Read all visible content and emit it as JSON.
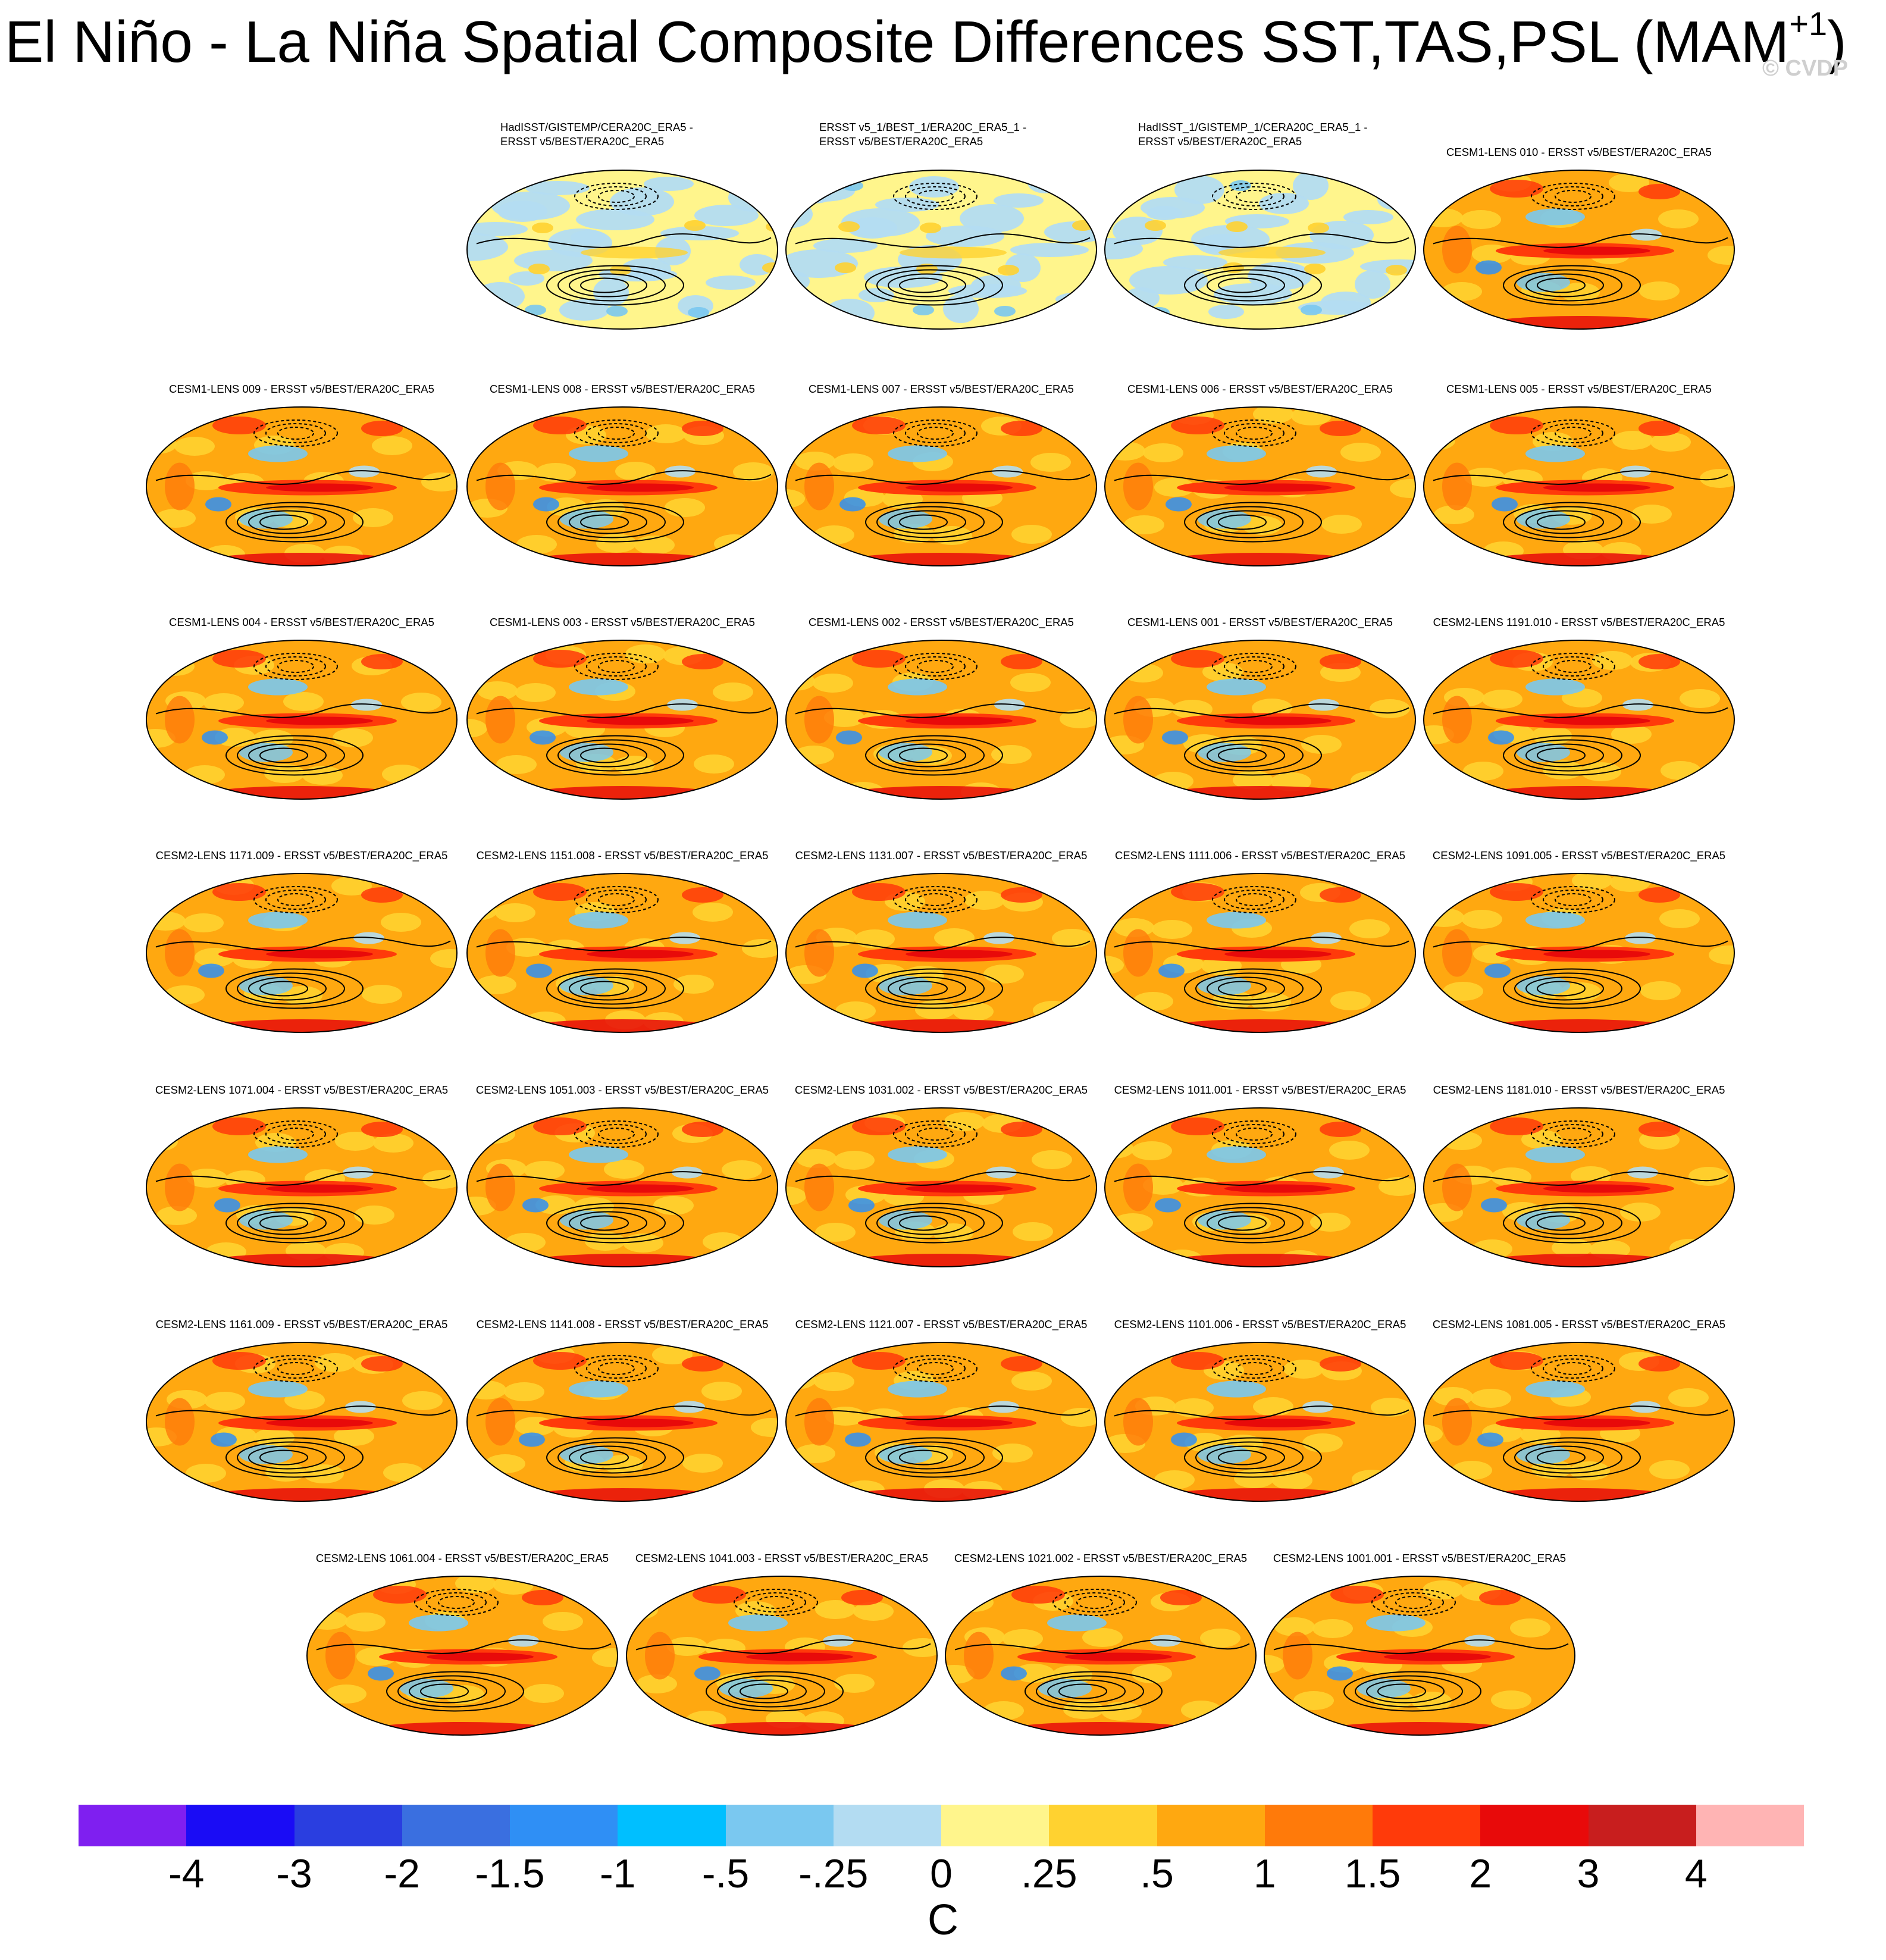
{
  "title": {
    "main": "El Niño - La Niña Spatial Composite Differences SST,TAS,PSL (MAM",
    "sup": "+1",
    "close": ")"
  },
  "watermark": "© CVDP",
  "rows": [
    [
      "",
      "HadISST/GISTEMP/CERA20C_ERA5 -\nERSST v5/BEST/ERA20C_ERA5",
      "ERSST v5_1/BEST_1/ERA20C_ERA5_1 -\nERSST v5/BEST/ERA20C_ERA5",
      "HadISST_1/GISTEMP_1/CERA20C_ERA5_1 -\nERSST v5/BEST/ERA20C_ERA5",
      "CESM1-LENS 010 - ERSST v5/BEST/ERA20C_ERA5"
    ],
    [
      "CESM1-LENS 009 - ERSST v5/BEST/ERA20C_ERA5",
      "CESM1-LENS 008 - ERSST v5/BEST/ERA20C_ERA5",
      "CESM1-LENS 007 - ERSST v5/BEST/ERA20C_ERA5",
      "CESM1-LENS 006 - ERSST v5/BEST/ERA20C_ERA5",
      "CESM1-LENS 005 - ERSST v5/BEST/ERA20C_ERA5"
    ],
    [
      "CESM1-LENS 004 - ERSST v5/BEST/ERA20C_ERA5",
      "CESM1-LENS 003 - ERSST v5/BEST/ERA20C_ERA5",
      "CESM1-LENS 002 - ERSST v5/BEST/ERA20C_ERA5",
      "CESM1-LENS 001 - ERSST v5/BEST/ERA20C_ERA5",
      "CESM2-LENS 1191.010 - ERSST v5/BEST/ERA20C_ERA5"
    ],
    [
      "CESM2-LENS 1171.009 - ERSST v5/BEST/ERA20C_ERA5",
      "CESM2-LENS 1151.008 - ERSST v5/BEST/ERA20C_ERA5",
      "CESM2-LENS 1131.007 - ERSST v5/BEST/ERA20C_ERA5",
      "CESM2-LENS 1111.006 - ERSST v5/BEST/ERA20C_ERA5",
      "CESM2-LENS 1091.005 - ERSST v5/BEST/ERA20C_ERA5"
    ],
    [
      "CESM2-LENS 1071.004 - ERSST v5/BEST/ERA20C_ERA5",
      "CESM2-LENS 1051.003 - ERSST v5/BEST/ERA20C_ERA5",
      "CESM2-LENS 1031.002 - ERSST v5/BEST/ERA20C_ERA5",
      "CESM2-LENS 1011.001 - ERSST v5/BEST/ERA20C_ERA5",
      "CESM2-LENS 1181.010 - ERSST v5/BEST/ERA20C_ERA5"
    ],
    [
      "CESM2-LENS 1161.009 - ERSST v5/BEST/ERA20C_ERA5",
      "CESM2-LENS 1141.008 - ERSST v5/BEST/ERA20C_ERA5",
      "CESM2-LENS 1121.007 - ERSST v5/BEST/ERA20C_ERA5",
      "CESM2-LENS 1101.006 - ERSST v5/BEST/ERA20C_ERA5",
      "CESM2-LENS 1081.005 - ERSST v5/BEST/ERA20C_ERA5"
    ],
    [
      "CESM2-LENS 1061.004 - ERSST v5/BEST/ERA20C_ERA5",
      "CESM2-LENS 1041.003 - ERSST v5/BEST/ERA20C_ERA5",
      "CESM2-LENS 1021.002 - ERSST v5/BEST/ERA20C_ERA5",
      "CESM2-LENS 1001.001 - ERSST v5/BEST/ERA20C_ERA5"
    ]
  ],
  "colorbar": {
    "colors": [
      "#7f1ff0",
      "#1a0cf5",
      "#2a3ee0",
      "#3a6fe0",
      "#2f8ff5",
      "#00bfff",
      "#7ac8f0",
      "#b3dcf2",
      "#fff58c",
      "#ffd230",
      "#ffa810",
      "#ff7a0a",
      "#ff3a0a",
      "#e80a0a",
      "#c81e1e",
      "#ffb4b4"
    ],
    "ticks": [
      "-4",
      "-3",
      "-2",
      "-1.5",
      "-1",
      "-.5",
      "-.25",
      "0",
      ".25",
      ".5",
      "1",
      "1.5",
      "2",
      "3",
      "4"
    ],
    "unit": "C"
  }
}
